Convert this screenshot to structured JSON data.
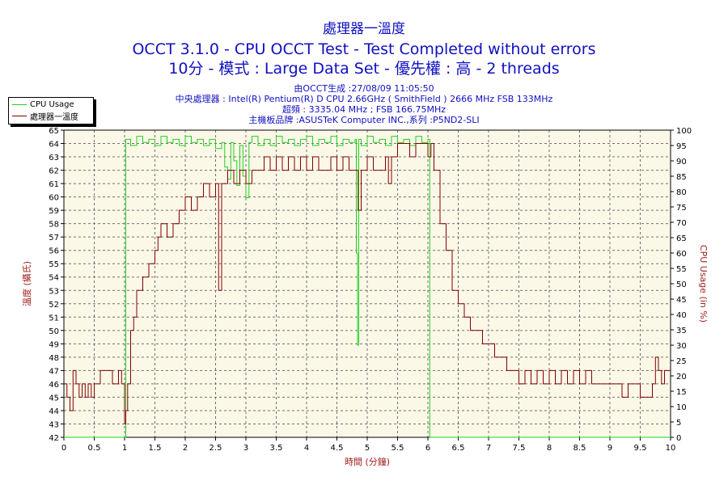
{
  "header": {
    "title1": "處理器一溫度",
    "title2": "OCCT 3.1.0 - CPU OCCT Test - Test Completed without errors",
    "title3": "10分 - 模式 : Large Data Set - 優先權 : 高 - 2 threads"
  },
  "info": {
    "line1": "由OCCT生成 :27/08/09 11:05:50",
    "line2": "中央處理器 : Intel(R) Pentium(R) D CPU 2.66GHz ( SmithField ) 2666 MHz FSB 133MHz",
    "line3": "超頻 : 3335.04 MHz ; FSB 166.75MHz",
    "line4": "主機板品牌 :ASUSTeK Computer INC.,系列 :P5ND2-SLI"
  },
  "legend": {
    "cpu_usage": "CPU Usage",
    "temperature": "處理器一溫度"
  },
  "colors": {
    "title": "#1010c0",
    "cpu_usage": "#20d020",
    "temperature": "#800000",
    "plot_bg": "#fcf8e8",
    "left_axis_label": "#a02020"
  },
  "chart_data": {
    "type": "line",
    "xlabel": "時間 (分鐘)",
    "ylabel_left": "溫度 (攝氏)",
    "ylabel_right": "CPU Usage (in %)",
    "xlim": [
      0,
      10
    ],
    "ylim_left": [
      42,
      65
    ],
    "ylim_right": [
      0,
      100
    ],
    "x_ticks": [
      "0",
      "0.5",
      "1",
      "1.5",
      "2",
      "2.5",
      "3",
      "3.5",
      "4",
      "4.5",
      "5",
      "5.5",
      "6",
      "6.5",
      "7",
      "7.5",
      "8",
      "8.5",
      "9",
      "9.5",
      "10"
    ],
    "y_left_ticks": [
      "42",
      "43",
      "44",
      "45",
      "46",
      "47",
      "48",
      "49",
      "50",
      "51",
      "52",
      "53",
      "54",
      "55",
      "56",
      "57",
      "58",
      "59",
      "60",
      "61",
      "62",
      "63",
      "64",
      "65"
    ],
    "y_right_ticks": [
      "0",
      "5",
      "10",
      "15",
      "20",
      "25",
      "30",
      "35",
      "40",
      "45",
      "50",
      "55",
      "60",
      "65",
      "70",
      "75",
      "80",
      "85",
      "90",
      "95",
      "100"
    ],
    "grid": true,
    "legend_position": "top-left",
    "series": [
      {
        "name": "CPU Usage",
        "axis": "right",
        "points": [
          [
            0,
            0
          ],
          [
            1.0,
            0
          ],
          [
            1.02,
            97
          ],
          [
            1.1,
            95
          ],
          [
            1.2,
            98
          ],
          [
            1.3,
            96
          ],
          [
            1.4,
            97
          ],
          [
            1.5,
            95
          ],
          [
            1.6,
            98
          ],
          [
            1.7,
            96
          ],
          [
            1.8,
            97
          ],
          [
            1.9,
            95
          ],
          [
            2.0,
            98
          ],
          [
            2.1,
            96
          ],
          [
            2.2,
            97
          ],
          [
            2.3,
            95
          ],
          [
            2.4,
            97
          ],
          [
            2.5,
            94
          ],
          [
            2.6,
            96
          ],
          [
            2.65,
            88
          ],
          [
            2.7,
            84
          ],
          [
            2.75,
            96
          ],
          [
            2.8,
            90
          ],
          [
            2.85,
            82
          ],
          [
            2.9,
            95
          ],
          [
            2.95,
            85
          ],
          [
            3.0,
            78
          ],
          [
            3.05,
            96
          ],
          [
            3.1,
            98
          ],
          [
            3.2,
            95
          ],
          [
            3.3,
            97
          ],
          [
            3.4,
            95
          ],
          [
            3.5,
            98
          ],
          [
            3.6,
            96
          ],
          [
            3.7,
            97
          ],
          [
            3.8,
            95
          ],
          [
            3.9,
            97
          ],
          [
            4.0,
            98
          ],
          [
            4.1,
            95
          ],
          [
            4.2,
            97
          ],
          [
            4.3,
            96
          ],
          [
            4.4,
            98
          ],
          [
            4.5,
            95
          ],
          [
            4.6,
            97
          ],
          [
            4.7,
            96
          ],
          [
            4.8,
            97
          ],
          [
            4.82,
            60
          ],
          [
            4.84,
            30
          ],
          [
            4.86,
            97
          ],
          [
            4.9,
            95
          ],
          [
            5.0,
            98
          ],
          [
            5.1,
            96
          ],
          [
            5.2,
            97
          ],
          [
            5.3,
            95
          ],
          [
            5.4,
            98
          ],
          [
            5.5,
            96
          ],
          [
            5.6,
            97
          ],
          [
            5.7,
            95
          ],
          [
            5.8,
            98
          ],
          [
            5.9,
            96
          ],
          [
            6.0,
            97
          ],
          [
            6.03,
            0
          ],
          [
            10,
            0
          ]
        ]
      },
      {
        "name": "處理器一溫度",
        "axis": "left",
        "points": [
          [
            0,
            46
          ],
          [
            0.05,
            45
          ],
          [
            0.1,
            44
          ],
          [
            0.15,
            47
          ],
          [
            0.2,
            46
          ],
          [
            0.25,
            45
          ],
          [
            0.3,
            46
          ],
          [
            0.35,
            45
          ],
          [
            0.4,
            46
          ],
          [
            0.45,
            45
          ],
          [
            0.5,
            46
          ],
          [
            0.55,
            46
          ],
          [
            0.6,
            47
          ],
          [
            0.7,
            47
          ],
          [
            0.8,
            46
          ],
          [
            0.9,
            47
          ],
          [
            0.95,
            46
          ],
          [
            1.0,
            43
          ],
          [
            1.02,
            44
          ],
          [
            1.05,
            46
          ],
          [
            1.1,
            50
          ],
          [
            1.15,
            51
          ],
          [
            1.2,
            53
          ],
          [
            1.3,
            54
          ],
          [
            1.4,
            55
          ],
          [
            1.5,
            56
          ],
          [
            1.55,
            57
          ],
          [
            1.6,
            58
          ],
          [
            1.7,
            57
          ],
          [
            1.8,
            58
          ],
          [
            1.9,
            59
          ],
          [
            2.0,
            60
          ],
          [
            2.1,
            59
          ],
          [
            2.2,
            60
          ],
          [
            2.3,
            61
          ],
          [
            2.4,
            60
          ],
          [
            2.5,
            61
          ],
          [
            2.55,
            53
          ],
          [
            2.6,
            61
          ],
          [
            2.7,
            62
          ],
          [
            2.8,
            61
          ],
          [
            2.9,
            62
          ],
          [
            3.0,
            61
          ],
          [
            3.1,
            62
          ],
          [
            3.2,
            62
          ],
          [
            3.3,
            63
          ],
          [
            3.4,
            62
          ],
          [
            3.5,
            63
          ],
          [
            3.6,
            62
          ],
          [
            3.7,
            63
          ],
          [
            3.8,
            62
          ],
          [
            3.9,
            63
          ],
          [
            4.0,
            62
          ],
          [
            4.1,
            63
          ],
          [
            4.2,
            62
          ],
          [
            4.3,
            62
          ],
          [
            4.4,
            63
          ],
          [
            4.5,
            62
          ],
          [
            4.6,
            63
          ],
          [
            4.7,
            62
          ],
          [
            4.8,
            62
          ],
          [
            4.85,
            59
          ],
          [
            4.9,
            62
          ],
          [
            5.0,
            63
          ],
          [
            5.1,
            62
          ],
          [
            5.2,
            62
          ],
          [
            5.3,
            63
          ],
          [
            5.35,
            61
          ],
          [
            5.4,
            63
          ],
          [
            5.5,
            64
          ],
          [
            5.6,
            64
          ],
          [
            5.7,
            63
          ],
          [
            5.8,
            64
          ],
          [
            5.9,
            64
          ],
          [
            6.0,
            63
          ],
          [
            6.05,
            64
          ],
          [
            6.1,
            62
          ],
          [
            6.2,
            58
          ],
          [
            6.3,
            56
          ],
          [
            6.4,
            53
          ],
          [
            6.5,
            52
          ],
          [
            6.6,
            51
          ],
          [
            6.7,
            50
          ],
          [
            6.8,
            50
          ],
          [
            6.9,
            49
          ],
          [
            7.0,
            49
          ],
          [
            7.1,
            48
          ],
          [
            7.2,
            48
          ],
          [
            7.3,
            47
          ],
          [
            7.4,
            47
          ],
          [
            7.5,
            46
          ],
          [
            7.6,
            47
          ],
          [
            7.7,
            46
          ],
          [
            7.8,
            47
          ],
          [
            7.9,
            46
          ],
          [
            8.0,
            47
          ],
          [
            8.1,
            46
          ],
          [
            8.2,
            47
          ],
          [
            8.3,
            46
          ],
          [
            8.4,
            47
          ],
          [
            8.5,
            46
          ],
          [
            8.6,
            47
          ],
          [
            8.7,
            46
          ],
          [
            8.8,
            46
          ],
          [
            8.9,
            46
          ],
          [
            9.0,
            46
          ],
          [
            9.1,
            46
          ],
          [
            9.2,
            45
          ],
          [
            9.3,
            46
          ],
          [
            9.4,
            46
          ],
          [
            9.5,
            45
          ],
          [
            9.6,
            45
          ],
          [
            9.7,
            46
          ],
          [
            9.75,
            48
          ],
          [
            9.8,
            47
          ],
          [
            9.85,
            46
          ],
          [
            9.9,
            47
          ],
          [
            10,
            47
          ]
        ]
      }
    ]
  }
}
